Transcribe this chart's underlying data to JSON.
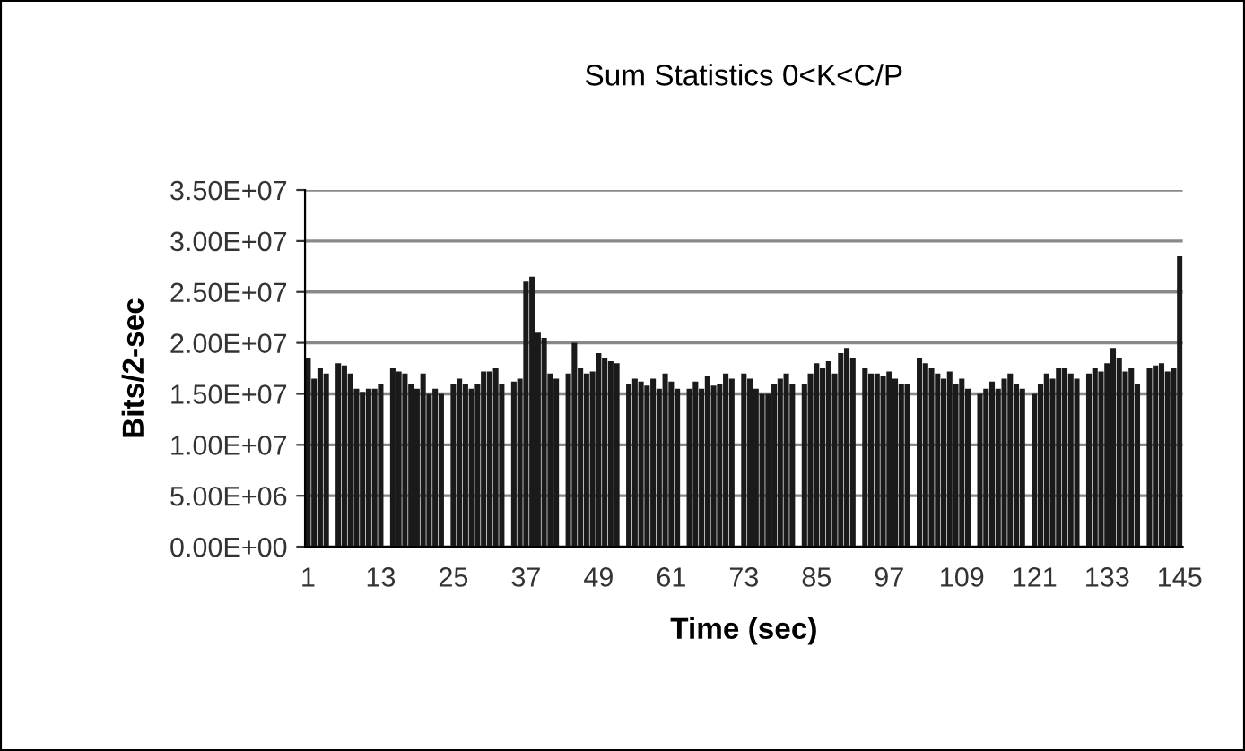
{
  "chart_data": {
    "type": "bar",
    "title": "Sum Statistics 0<K<C/P",
    "xlabel": "Time (sec)",
    "ylabel": "Bits/2-sec",
    "categories": [
      "1",
      null,
      null,
      null,
      null,
      null,
      null,
      null,
      null,
      null,
      null,
      null,
      "13",
      null,
      null,
      null,
      null,
      null,
      null,
      null,
      null,
      null,
      null,
      null,
      "25",
      null,
      null,
      null,
      null,
      null,
      null,
      null,
      null,
      null,
      null,
      null,
      "37",
      null,
      null,
      null,
      null,
      null,
      null,
      null,
      null,
      null,
      null,
      null,
      "49",
      null,
      null,
      null,
      null,
      null,
      null,
      null,
      null,
      null,
      null,
      null,
      "61",
      null,
      null,
      null,
      null,
      null,
      null,
      null,
      null,
      null,
      null,
      null,
      "73",
      null,
      null,
      null,
      null,
      null,
      null,
      null,
      null,
      null,
      null,
      null,
      "85",
      null,
      null,
      null,
      null,
      null,
      null,
      null,
      null,
      null,
      null,
      null,
      "97",
      null,
      null,
      null,
      null,
      null,
      null,
      null,
      null,
      null,
      null,
      null,
      "109",
      null,
      null,
      null,
      null,
      null,
      null,
      null,
      null,
      null,
      null,
      null,
      "121",
      null,
      null,
      null,
      null,
      null,
      null,
      null,
      null,
      null,
      null,
      null,
      "133",
      null,
      null,
      null,
      null,
      null,
      null,
      null,
      null,
      null,
      null,
      null,
      "145"
    ],
    "values": [
      18500000,
      16500000,
      17500000,
      17000000,
      0,
      18000000,
      17800000,
      17000000,
      15500000,
      15200000,
      15500000,
      15500000,
      16000000,
      0,
      17500000,
      17200000,
      17000000,
      16000000,
      15500000,
      17000000,
      15000000,
      15500000,
      15000000,
      0,
      16000000,
      16500000,
      16000000,
      15500000,
      16000000,
      17200000,
      17200000,
      17500000,
      16000000,
      0,
      16200000,
      16500000,
      26000000,
      26500000,
      21000000,
      20500000,
      17000000,
      16500000,
      0,
      17000000,
      20000000,
      17500000,
      17000000,
      17200000,
      19000000,
      18500000,
      18200000,
      18000000,
      0,
      16000000,
      16500000,
      16200000,
      15800000,
      16500000,
      15500000,
      17000000,
      16200000,
      15500000,
      0,
      15500000,
      16200000,
      15500000,
      16800000,
      15800000,
      16000000,
      17000000,
      16500000,
      0,
      17000000,
      16500000,
      15500000,
      15000000,
      15000000,
      16000000,
      16500000,
      17000000,
      16000000,
      0,
      16000000,
      17000000,
      18000000,
      17500000,
      18200000,
      17000000,
      19000000,
      19500000,
      18500000,
      0,
      17500000,
      17000000,
      17000000,
      16800000,
      17200000,
      16500000,
      16000000,
      16000000,
      0,
      18500000,
      18000000,
      17500000,
      17000000,
      16500000,
      17200000,
      16000000,
      16500000,
      15500000,
      0,
      15000000,
      15500000,
      16200000,
      15500000,
      16500000,
      17000000,
      16000000,
      15500000,
      0,
      15000000,
      16000000,
      17000000,
      16500000,
      17500000,
      17500000,
      17000000,
      16500000,
      0,
      17000000,
      17500000,
      17200000,
      18000000,
      19500000,
      18500000,
      17200000,
      17500000,
      16000000,
      0,
      17500000,
      17800000,
      18000000,
      17200000,
      17500000,
      28500000
    ],
    "color": "#1a1a1a",
    "ylim": [
      0,
      35000000
    ],
    "yticks": [
      {
        "value": 0,
        "label": "0.00E+00"
      },
      {
        "value": 5000000,
        "label": "5.00E+06"
      },
      {
        "value": 10000000,
        "label": "1.00E+07"
      },
      {
        "value": 15000000,
        "label": "1.50E+07"
      },
      {
        "value": 20000000,
        "label": "2.00E+07"
      },
      {
        "value": 25000000,
        "label": "2.50E+07"
      },
      {
        "value": 30000000,
        "label": "3.00E+07"
      },
      {
        "value": 35000000,
        "label": "3.50E+07"
      }
    ],
    "grid": "y"
  }
}
